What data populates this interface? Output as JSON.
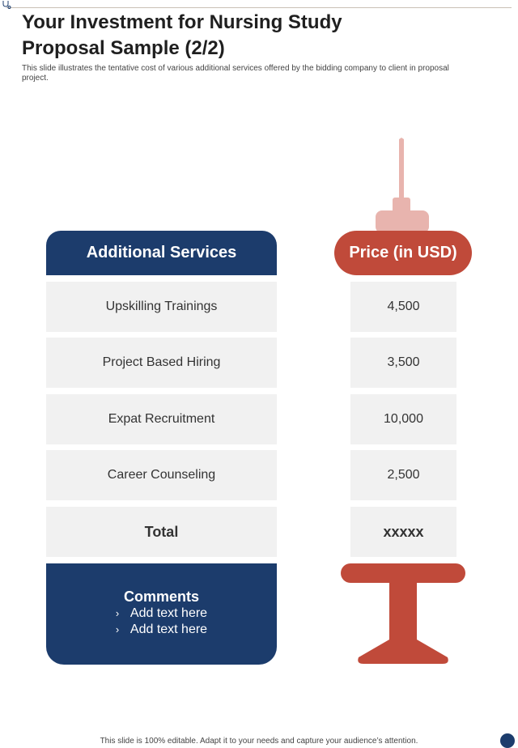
{
  "title_lines": [
    "Your Investment for Nursing Study",
    "Proposal Sample (2/2)"
  ],
  "subtitle": "This slide illustrates the tentative cost of various additional services offered by the bidding company to client in proposal project.",
  "table": {
    "services_header": "Additional Services",
    "price_header": "Price (in USD)",
    "rows": [
      {
        "service": "Upskilling Trainings",
        "price": "4,500"
      },
      {
        "service": "Project Based Hiring",
        "price": "3,500"
      },
      {
        "service": "Expat Recruitment",
        "price": "10,000"
      },
      {
        "service": "Career Counseling",
        "price": "2,500"
      }
    ],
    "total_label": "Total",
    "total_value": "xxxxx"
  },
  "comments": {
    "title": "Comments",
    "bullet": "›",
    "items": [
      "Add text here",
      "Add text here"
    ]
  },
  "footer": "This slide is 100% editable. Adapt it to your needs and capture your audience’s attention.",
  "colors": {
    "navy": "#1c3c6c",
    "red": "#c04a3a",
    "pink": "#e8b4ae",
    "cell": "#f1f1f1"
  }
}
